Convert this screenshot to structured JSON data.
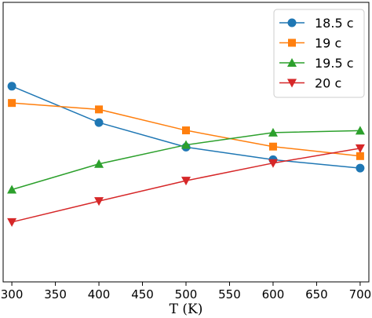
{
  "chart_data": {
    "type": "line",
    "title": "",
    "xlabel": "T (K)",
    "ylabel": "",
    "x": [
      300,
      400,
      500,
      600,
      700
    ],
    "xlim": [
      290,
      710
    ],
    "ylim": [
      0,
      1
    ],
    "xticks": [
      300,
      350,
      400,
      450,
      500,
      550,
      600,
      650,
      700
    ],
    "y_ticks_shown": false,
    "grid": false,
    "legend_position": "upper-right",
    "series": [
      {
        "name": "18.5 c",
        "color": "#1f77b4",
        "marker": "circle",
        "values": [
          0.7,
          0.57,
          0.482,
          0.437,
          0.407
        ]
      },
      {
        "name": "19 c",
        "color": "#ff7f0e",
        "marker": "square",
        "values": [
          0.64,
          0.617,
          0.542,
          0.484,
          0.45
        ]
      },
      {
        "name": "19.5 c",
        "color": "#2ca02c",
        "marker": "triangle-up",
        "values": [
          0.33,
          0.422,
          0.49,
          0.534,
          0.541
        ]
      },
      {
        "name": "20 c",
        "color": "#d62728",
        "marker": "triangle-down",
        "values": [
          0.214,
          0.289,
          0.362,
          0.425,
          0.478
        ]
      }
    ]
  }
}
